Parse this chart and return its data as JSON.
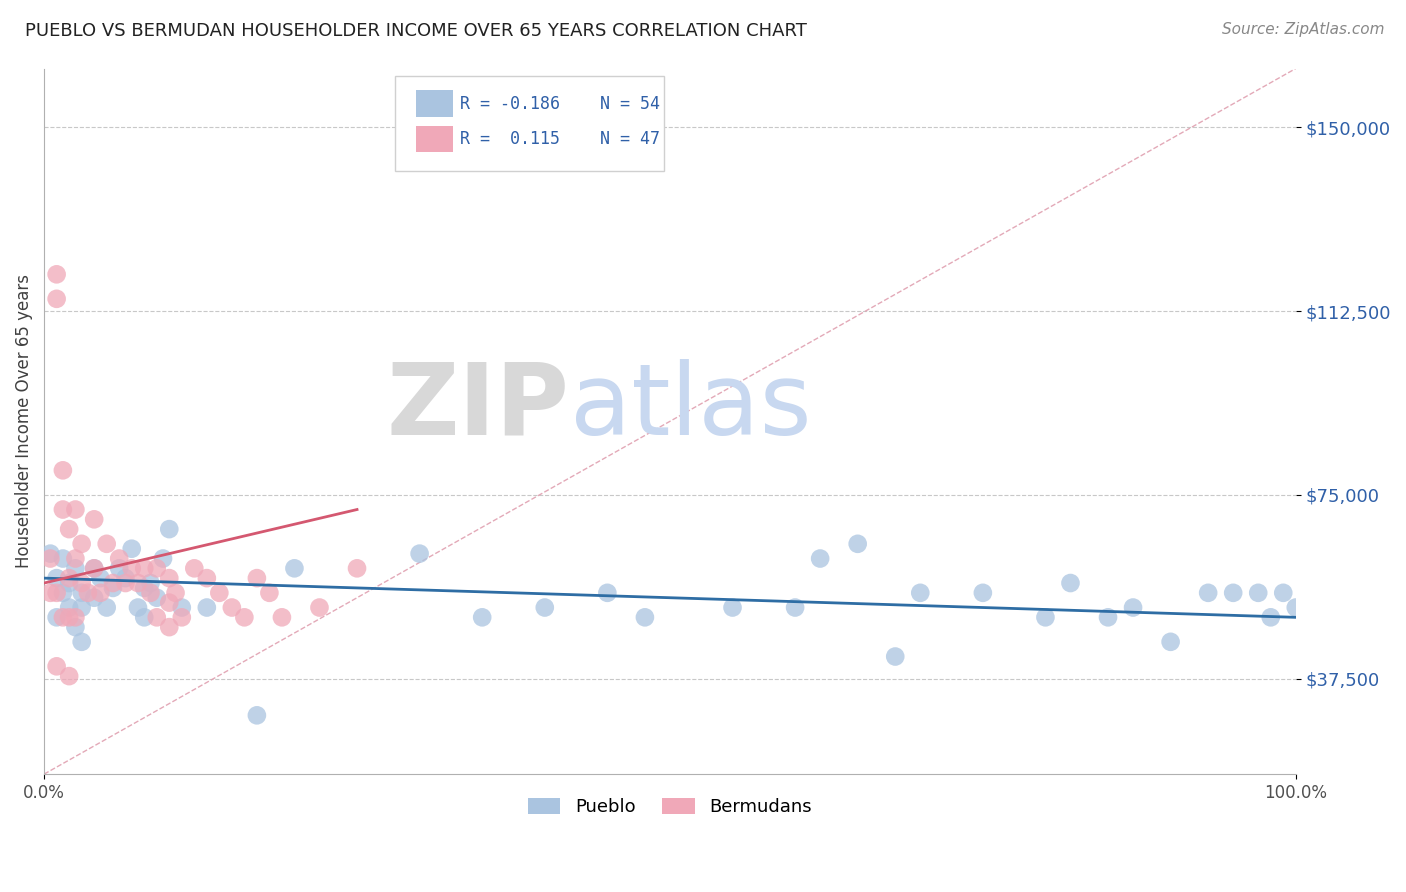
{
  "title": "PUEBLO VS BERMUDAN HOUSEHOLDER INCOME OVER 65 YEARS CORRELATION CHART",
  "source": "Source: ZipAtlas.com",
  "ylabel": "Householder Income Over 65 years",
  "xlim": [
    0.0,
    1.0
  ],
  "ylim": [
    18000,
    162000
  ],
  "yticks": [
    37500,
    75000,
    112500,
    150000
  ],
  "ytick_labels": [
    "$37,500",
    "$75,000",
    "$112,500",
    "$150,000"
  ],
  "xtick_labels": [
    "0.0%",
    "100.0%"
  ],
  "legend1_label": "Pueblo",
  "legend2_label": "Bermudans",
  "pueblo_color": "#aac4e0",
  "bermudan_color": "#f0a8b8",
  "pueblo_line_color": "#2e6da4",
  "bermudan_line_color": "#d45870",
  "diag_line_color": "#e0a0b0",
  "axis_color": "#3060a8",
  "title_color": "#222222",
  "watermark_zip": "ZIP",
  "watermark_atlas": "atlas",
  "pueblo_x": [
    0.005,
    0.01,
    0.01,
    0.015,
    0.015,
    0.02,
    0.02,
    0.025,
    0.025,
    0.03,
    0.03,
    0.03,
    0.04,
    0.04,
    0.045,
    0.05,
    0.055,
    0.06,
    0.065,
    0.07,
    0.075,
    0.08,
    0.08,
    0.085,
    0.09,
    0.095,
    0.1,
    0.11,
    0.13,
    0.17,
    0.2,
    0.3,
    0.35,
    0.4,
    0.45,
    0.48,
    0.55,
    0.6,
    0.62,
    0.65,
    0.68,
    0.7,
    0.75,
    0.8,
    0.82,
    0.85,
    0.87,
    0.9,
    0.93,
    0.95,
    0.97,
    0.98,
    0.99,
    1.0
  ],
  "pueblo_y": [
    63000,
    58000,
    50000,
    62000,
    55000,
    57000,
    52000,
    60000,
    48000,
    55000,
    52000,
    45000,
    60000,
    54000,
    58000,
    52000,
    56000,
    60000,
    58000,
    64000,
    52000,
    56000,
    50000,
    57000,
    54000,
    62000,
    68000,
    52000,
    52000,
    30000,
    60000,
    63000,
    50000,
    52000,
    55000,
    50000,
    52000,
    52000,
    62000,
    65000,
    42000,
    55000,
    55000,
    50000,
    57000,
    50000,
    52000,
    45000,
    55000,
    55000,
    55000,
    50000,
    55000,
    52000
  ],
  "bermudan_x": [
    0.005,
    0.005,
    0.01,
    0.01,
    0.01,
    0.01,
    0.015,
    0.015,
    0.015,
    0.02,
    0.02,
    0.02,
    0.02,
    0.025,
    0.025,
    0.025,
    0.03,
    0.03,
    0.035,
    0.04,
    0.04,
    0.045,
    0.05,
    0.055,
    0.06,
    0.065,
    0.07,
    0.075,
    0.08,
    0.085,
    0.09,
    0.09,
    0.1,
    0.1,
    0.1,
    0.105,
    0.11,
    0.12,
    0.13,
    0.14,
    0.15,
    0.16,
    0.17,
    0.18,
    0.19,
    0.22,
    0.25
  ],
  "bermudan_y": [
    62000,
    55000,
    120000,
    115000,
    55000,
    40000,
    80000,
    72000,
    50000,
    68000,
    58000,
    50000,
    38000,
    72000,
    62000,
    50000,
    65000,
    57000,
    55000,
    70000,
    60000,
    55000,
    65000,
    57000,
    62000,
    57000,
    60000,
    57000,
    60000,
    55000,
    60000,
    50000,
    58000,
    53000,
    48000,
    55000,
    50000,
    60000,
    58000,
    55000,
    52000,
    50000,
    58000,
    55000,
    50000,
    52000,
    60000
  ],
  "pueblo_trend_x": [
    0.0,
    1.0
  ],
  "pueblo_trend_y": [
    58000,
    50000
  ],
  "bermudan_trend_x": [
    0.0,
    0.25
  ],
  "bermudan_trend_y": [
    57000,
    72000
  ]
}
